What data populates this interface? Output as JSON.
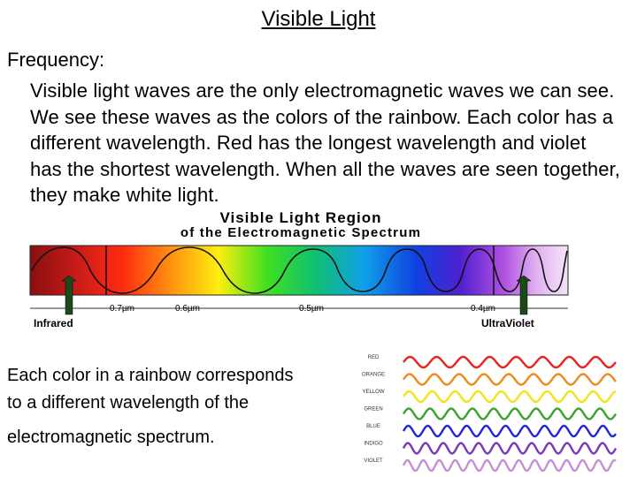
{
  "slide": {
    "title": "Visible Light",
    "frequency_label": "Frequency:",
    "paragraph": "Visible light waves are the only electromagnetic waves we can see. We see these waves as the colors of the rainbow. Each color has a different wavelength. Red has the longest wavelength and violet has the shortest wavelength. When all the waves are seen together, they make white light.",
    "caption_line1": "Each color in a rainbow corresponds",
    "caption_line2": "to a different wavelength of the",
    "caption_line3": "electromagnetic spectrum."
  },
  "spectrum_figure": {
    "title_line1": "Visible Light Region",
    "title_line2": "of the Electromagnetic Spectrum",
    "wavelength_ticks": [
      "0.7µm",
      "0.6µm",
      "0.5µm",
      "0.4µm"
    ],
    "left_arrow_label": "Infrared",
    "right_arrow_label": "UltraViolet",
    "arrow_color": "#1a4a1a"
  },
  "color_waves": {
    "rows": [
      {
        "label": "RED",
        "color": "#e8231e"
      },
      {
        "label": "ORANGE",
        "color": "#f08a1c"
      },
      {
        "label": "YELLOW",
        "color": "#f2e21a"
      },
      {
        "label": "GREEN",
        "color": "#35a52a"
      },
      {
        "label": "BLUE",
        "color": "#2424d8"
      },
      {
        "label": "INDIGO",
        "color": "#7a3ab8"
      },
      {
        "label": "VIOLET",
        "color": "#c690d6"
      }
    ]
  }
}
